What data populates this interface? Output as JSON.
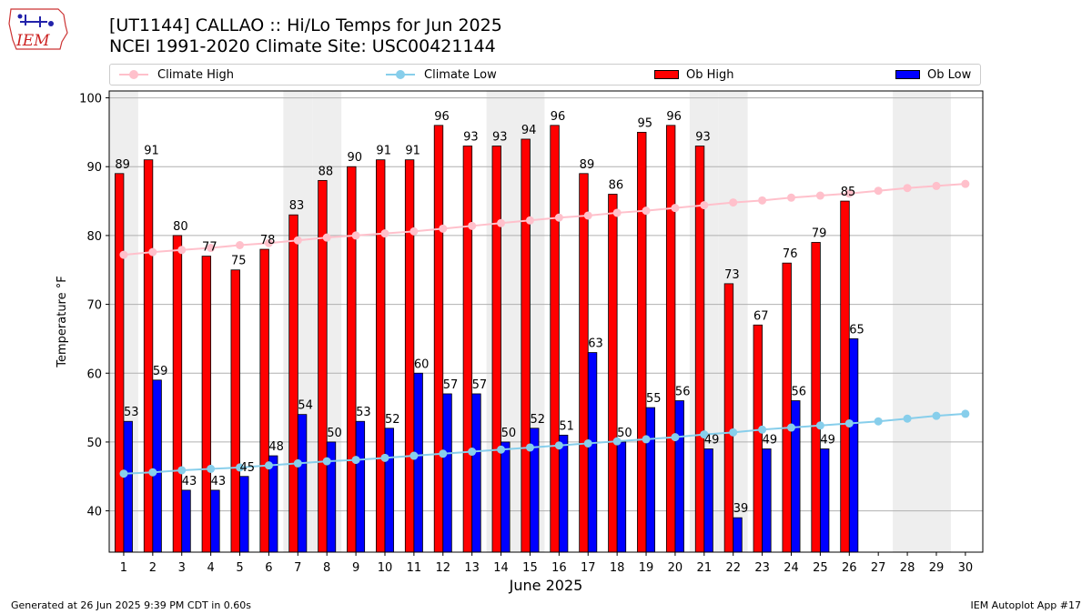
{
  "header": {
    "logo_text": "IEM",
    "title_line1": "[UT1144] CALLAO :: Hi/Lo Temps for Jun 2025",
    "title_line2": "NCEI 1991-2020 Climate Site: USC00421144"
  },
  "legend": {
    "climate_high": "Climate High",
    "climate_low": "Climate Low",
    "ob_high": "Ob High",
    "ob_low": "Ob Low"
  },
  "footer": {
    "left": "Generated at 26 Jun 2025 9:39 PM CDT in 0.60s",
    "right": "IEM Autoplot App #17"
  },
  "colors": {
    "ob_high": "#ff0000",
    "ob_low": "#0000ff",
    "climate_high": "#ffc0cb",
    "climate_low": "#87ceeb",
    "weekend_shade": "#eeeeee",
    "grid": "#b0b0b0"
  },
  "chart_data": {
    "type": "bar",
    "xlabel": "June 2025",
    "ylabel": "Temperature °F",
    "ylim": [
      34,
      101
    ],
    "yticks": [
      40,
      50,
      60,
      70,
      80,
      90,
      100
    ],
    "grid": "horizontal",
    "legend_position": "top",
    "categories": [
      "1",
      "2",
      "3",
      "4",
      "5",
      "6",
      "7",
      "8",
      "9",
      "10",
      "11",
      "12",
      "13",
      "14",
      "15",
      "16",
      "17",
      "18",
      "19",
      "20",
      "21",
      "22",
      "23",
      "24",
      "25",
      "26",
      "27",
      "28",
      "29",
      "30"
    ],
    "shaded_days": [
      1,
      7,
      8,
      14,
      15,
      21,
      22,
      28,
      29
    ],
    "series": [
      {
        "name": "Ob High",
        "kind": "bar",
        "values": [
          89,
          91,
          80,
          77,
          75,
          78,
          83,
          88,
          90,
          91,
          91,
          96,
          93,
          93,
          94,
          96,
          89,
          86,
          95,
          96,
          93,
          73,
          67,
          76,
          79,
          85,
          null,
          null,
          null,
          null
        ]
      },
      {
        "name": "Ob Low",
        "kind": "bar",
        "values": [
          53,
          59,
          43,
          43,
          45,
          48,
          54,
          50,
          53,
          52,
          60,
          57,
          57,
          50,
          52,
          51,
          63,
          50,
          55,
          56,
          49,
          39,
          49,
          56,
          49,
          65,
          null,
          null,
          null,
          null
        ]
      },
      {
        "name": "Climate High",
        "kind": "line",
        "values": [
          77.2,
          77.6,
          77.9,
          78.2,
          78.6,
          78.9,
          79.3,
          79.7,
          80.0,
          80.3,
          80.6,
          81.0,
          81.4,
          81.8,
          82.2,
          82.6,
          82.9,
          83.3,
          83.6,
          84.0,
          84.4,
          84.8,
          85.1,
          85.5,
          85.8,
          86.1,
          86.5,
          86.9,
          87.2,
          87.5
        ]
      },
      {
        "name": "Climate Low",
        "kind": "line",
        "values": [
          45.4,
          45.6,
          45.9,
          46.1,
          46.3,
          46.6,
          46.9,
          47.2,
          47.4,
          47.7,
          48.0,
          48.3,
          48.6,
          48.9,
          49.2,
          49.5,
          49.8,
          50.1,
          50.4,
          50.7,
          51.1,
          51.4,
          51.8,
          52.1,
          52.4,
          52.7,
          53.0,
          53.4,
          53.8,
          54.1
        ]
      }
    ]
  }
}
